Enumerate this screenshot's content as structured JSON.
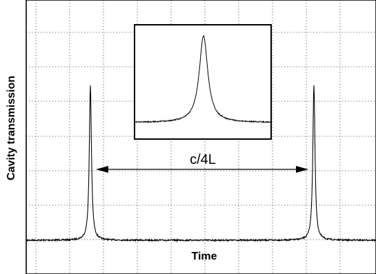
{
  "chart_data": {
    "type": "line",
    "title": "",
    "xlabel": "Time",
    "ylabel": "Cavity transmission",
    "xlim": [
      0,
      10
    ],
    "ylim": [
      0,
      7
    ],
    "grid": true,
    "legend": "none",
    "x_ticks": [
      0,
      1,
      2,
      3,
      4,
      5,
      6,
      7,
      8,
      9,
      10
    ],
    "y_ticks": [
      0,
      1,
      2,
      3,
      4,
      5,
      6,
      7
    ],
    "series": [
      {
        "baseline": 0.4,
        "peaks": [
          {
            "x": 1.5,
            "height": 4.5
          },
          {
            "x": 7.9,
            "height": 4.5
          }
        ]
      }
    ],
    "annotations": [
      {
        "text": "c/4L",
        "type": "double-arrow",
        "x_start": 1.5,
        "x_end": 7.9,
        "y": 2.0
      }
    ],
    "inset": {
      "type": "line",
      "shows": "single peak, magnified",
      "baseline": 0.2,
      "peak_height": 1.0
    }
  }
}
